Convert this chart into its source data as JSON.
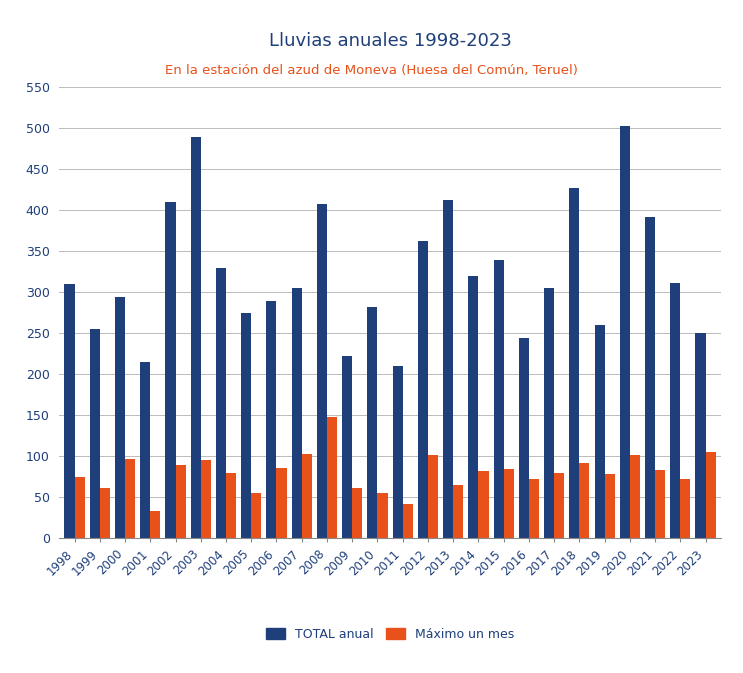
{
  "title": "Lluvias anuales 1998-2023",
  "subtitle": "En la estación del azud de Moneva (Huesa del Común, Teruel)",
  "years": [
    1998,
    1999,
    2000,
    2001,
    2002,
    2003,
    2004,
    2005,
    2006,
    2007,
    2008,
    2009,
    2010,
    2011,
    2012,
    2013,
    2014,
    2015,
    2016,
    2017,
    2018,
    2019,
    2020,
    2021,
    2022,
    2023
  ],
  "total_anual": [
    310,
    255,
    295,
    215,
    410,
    490,
    330,
    275,
    290,
    305,
    408,
    222,
    282,
    210,
    363,
    413,
    320,
    340,
    245,
    305,
    428,
    260,
    503,
    392,
    312,
    250
  ],
  "maximo_mes": [
    75,
    62,
    97,
    33,
    90,
    96,
    80,
    55,
    86,
    103,
    148,
    62,
    55,
    42,
    102,
    65,
    82,
    85,
    73,
    80,
    92,
    78,
    102,
    83,
    73,
    105
  ],
  "color_total": "#1F3F7A",
  "color_maximo": "#E8511A",
  "ylim": [
    0,
    550
  ],
  "yticks": [
    0,
    50,
    100,
    150,
    200,
    250,
    300,
    350,
    400,
    450,
    500,
    550
  ],
  "title_color": "#1F3F7A",
  "subtitle_color": "#E8511A",
  "legend_labels": [
    "TOTAL anual",
    "Máximo un mes"
  ],
  "background_color": "#FFFFFF",
  "grid_color": "#BBBBBB"
}
